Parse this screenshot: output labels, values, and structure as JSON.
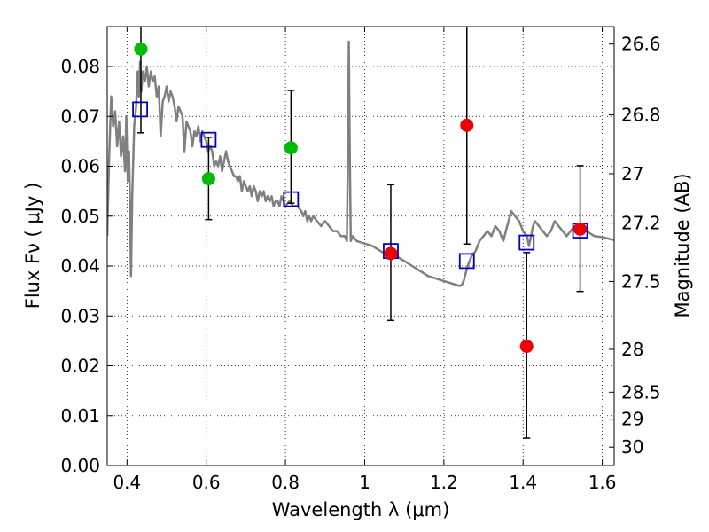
{
  "chart_data": {
    "type": "scatter",
    "xlabel": "Wavelength  λ (μm)",
    "ylabel": "Flux  Fν  ( μJy )",
    "y2label": "Magnitude (AB)",
    "xlim": [
      0.35,
      1.63
    ],
    "ylim": [
      0.0,
      0.088
    ],
    "xticks": [
      0.4,
      0.6,
      0.8,
      1.0,
      1.2,
      1.4,
      1.6
    ],
    "xticklabels": [
      "0.4",
      "0.6",
      "0.8",
      "1",
      "1.2",
      "1.4",
      "1.6"
    ],
    "yticks": [
      0.0,
      0.01,
      0.02,
      0.03,
      0.04,
      0.05,
      0.06,
      0.07,
      0.08
    ],
    "yticklabels": [
      "0.00",
      "0.01",
      "0.02",
      "0.03",
      "0.04",
      "0.05",
      "0.06",
      "0.07",
      "0.08"
    ],
    "y2ticks": [
      {
        "label": "26.6",
        "flux": 0.0845
      },
      {
        "label": "26.8",
        "flux": 0.0703
      },
      {
        "label": "27",
        "flux": 0.0585
      },
      {
        "label": "27.2",
        "flux": 0.0486
      },
      {
        "label": "27.5",
        "flux": 0.0369
      },
      {
        "label": "28",
        "flux": 0.0233
      },
      {
        "label": "28.5",
        "flux": 0.0147
      },
      {
        "label": "29",
        "flux": 0.0093
      },
      {
        "label": "30",
        "flux": 0.0037
      }
    ],
    "grid": true,
    "series": [
      {
        "kind": "model_sed",
        "color": "#808080",
        "points": [
          [
            0.35,
            0.046
          ],
          [
            0.355,
            0.062
          ],
          [
            0.36,
            0.074
          ],
          [
            0.365,
            0.068
          ],
          [
            0.37,
            0.071
          ],
          [
            0.375,
            0.064
          ],
          [
            0.38,
            0.069
          ],
          [
            0.385,
            0.062
          ],
          [
            0.39,
            0.066
          ],
          [
            0.395,
            0.059
          ],
          [
            0.398,
            0.07
          ],
          [
            0.402,
            0.057
          ],
          [
            0.405,
            0.063
          ],
          [
            0.408,
            0.05
          ],
          [
            0.41,
            0.038
          ],
          [
            0.413,
            0.054
          ],
          [
            0.418,
            0.068
          ],
          [
            0.423,
            0.072
          ],
          [
            0.427,
            0.079
          ],
          [
            0.43,
            0.074
          ],
          [
            0.433,
            0.081
          ],
          [
            0.436,
            0.075
          ],
          [
            0.44,
            0.079
          ],
          [
            0.445,
            0.077
          ],
          [
            0.45,
            0.08
          ],
          [
            0.455,
            0.076
          ],
          [
            0.46,
            0.079
          ],
          [
            0.465,
            0.077
          ],
          [
            0.47,
            0.078
          ],
          [
            0.475,
            0.074
          ],
          [
            0.48,
            0.076
          ],
          [
            0.485,
            0.066
          ],
          [
            0.49,
            0.073
          ],
          [
            0.495,
            0.074
          ],
          [
            0.5,
            0.076
          ],
          [
            0.505,
            0.073
          ],
          [
            0.51,
            0.075
          ],
          [
            0.515,
            0.074
          ],
          [
            0.52,
            0.072
          ],
          [
            0.525,
            0.069
          ],
          [
            0.53,
            0.072
          ],
          [
            0.535,
            0.071
          ],
          [
            0.54,
            0.07
          ],
          [
            0.545,
            0.063
          ],
          [
            0.55,
            0.069
          ],
          [
            0.555,
            0.068
          ],
          [
            0.56,
            0.067
          ],
          [
            0.565,
            0.064
          ],
          [
            0.57,
            0.067
          ],
          [
            0.575,
            0.066
          ],
          [
            0.58,
            0.068
          ],
          [
            0.585,
            0.065
          ],
          [
            0.59,
            0.067
          ],
          [
            0.595,
            0.066
          ],
          [
            0.6,
            0.065
          ],
          [
            0.605,
            0.063
          ],
          [
            0.61,
            0.064
          ],
          [
            0.615,
            0.063
          ],
          [
            0.62,
            0.06
          ],
          [
            0.625,
            0.061
          ],
          [
            0.63,
            0.06
          ],
          [
            0.635,
            0.062
          ],
          [
            0.64,
            0.059
          ],
          [
            0.645,
            0.061
          ],
          [
            0.65,
            0.063
          ],
          [
            0.655,
            0.061
          ],
          [
            0.66,
            0.06
          ],
          [
            0.665,
            0.059
          ],
          [
            0.67,
            0.058
          ],
          [
            0.675,
            0.058
          ],
          [
            0.68,
            0.057
          ],
          [
            0.685,
            0.058
          ],
          [
            0.69,
            0.055
          ],
          [
            0.695,
            0.057
          ],
          [
            0.7,
            0.056
          ],
          [
            0.705,
            0.055
          ],
          [
            0.71,
            0.056
          ],
          [
            0.715,
            0.054
          ],
          [
            0.72,
            0.056
          ],
          [
            0.725,
            0.055
          ],
          [
            0.73,
            0.053
          ],
          [
            0.735,
            0.055
          ],
          [
            0.74,
            0.054
          ],
          [
            0.745,
            0.055
          ],
          [
            0.75,
            0.053
          ],
          [
            0.755,
            0.054
          ],
          [
            0.76,
            0.053
          ],
          [
            0.765,
            0.054
          ],
          [
            0.77,
            0.052
          ],
          [
            0.775,
            0.053
          ],
          [
            0.78,
            0.053
          ],
          [
            0.785,
            0.052
          ],
          [
            0.79,
            0.054
          ],
          [
            0.795,
            0.053
          ],
          [
            0.8,
            0.052
          ],
          [
            0.81,
            0.053
          ],
          [
            0.82,
            0.052
          ],
          [
            0.83,
            0.052
          ],
          [
            0.84,
            0.051
          ],
          [
            0.845,
            0.05
          ],
          [
            0.85,
            0.051
          ],
          [
            0.855,
            0.049
          ],
          [
            0.86,
            0.05
          ],
          [
            0.865,
            0.049
          ],
          [
            0.87,
            0.05
          ],
          [
            0.88,
            0.049
          ],
          [
            0.89,
            0.048
          ],
          [
            0.9,
            0.049
          ],
          [
            0.91,
            0.048
          ],
          [
            0.92,
            0.047
          ],
          [
            0.93,
            0.047
          ],
          [
            0.94,
            0.046
          ],
          [
            0.95,
            0.046
          ],
          [
            0.955,
            0.045
          ],
          [
            0.958,
            0.065
          ],
          [
            0.96,
            0.085
          ],
          [
            0.962,
            0.066
          ],
          [
            0.965,
            0.045
          ],
          [
            0.97,
            0.046
          ],
          [
            0.98,
            0.045
          ],
          [
            1.0,
            0.0445
          ],
          [
            1.02,
            0.044
          ],
          [
            1.04,
            0.043
          ],
          [
            1.06,
            0.042
          ],
          [
            1.08,
            0.042
          ],
          [
            1.1,
            0.041
          ],
          [
            1.12,
            0.04
          ],
          [
            1.14,
            0.039
          ],
          [
            1.16,
            0.038
          ],
          [
            1.18,
            0.0375
          ],
          [
            1.2,
            0.037
          ],
          [
            1.22,
            0.0365
          ],
          [
            1.24,
            0.036
          ],
          [
            1.245,
            0.0362
          ],
          [
            1.25,
            0.037
          ],
          [
            1.255,
            0.0385
          ],
          [
            1.26,
            0.04
          ],
          [
            1.27,
            0.042
          ],
          [
            1.28,
            0.043
          ],
          [
            1.29,
            0.045
          ],
          [
            1.3,
            0.046
          ],
          [
            1.31,
            0.047
          ],
          [
            1.32,
            0.046
          ],
          [
            1.33,
            0.048
          ],
          [
            1.34,
            0.047
          ],
          [
            1.35,
            0.045
          ],
          [
            1.36,
            0.048
          ],
          [
            1.37,
            0.051
          ],
          [
            1.38,
            0.05
          ],
          [
            1.39,
            0.049
          ],
          [
            1.4,
            0.047
          ],
          [
            1.41,
            0.046
          ],
          [
            1.415,
            0.044
          ],
          [
            1.42,
            0.046
          ],
          [
            1.425,
            0.048
          ],
          [
            1.43,
            0.049
          ],
          [
            1.44,
            0.048
          ],
          [
            1.45,
            0.047
          ],
          [
            1.46,
            0.046
          ],
          [
            1.47,
            0.047
          ],
          [
            1.48,
            0.049
          ],
          [
            1.49,
            0.048
          ],
          [
            1.5,
            0.047
          ],
          [
            1.51,
            0.046
          ],
          [
            1.52,
            0.047
          ],
          [
            1.53,
            0.048
          ],
          [
            1.54,
            0.047
          ],
          [
            1.56,
            0.047
          ],
          [
            1.58,
            0.046
          ],
          [
            1.6,
            0.0458
          ],
          [
            1.63,
            0.0452
          ]
        ]
      },
      {
        "kind": "model_photometry",
        "marker": "open-square",
        "color": "#0000cc",
        "points": [
          {
            "x": 0.433,
            "y": 0.0714
          },
          {
            "x": 0.606,
            "y": 0.0653
          },
          {
            "x": 0.814,
            "y": 0.0534
          },
          {
            "x": 1.066,
            "y": 0.043
          },
          {
            "x": 1.258,
            "y": 0.041
          },
          {
            "x": 1.409,
            "y": 0.0447
          },
          {
            "x": 1.544,
            "y": 0.0471
          }
        ]
      },
      {
        "kind": "observed_detection",
        "marker": "filled-circle",
        "color": "#00bb00",
        "points": [
          {
            "x": 0.435,
            "y": 0.0835,
            "lo": 0.0667,
            "hi": 0.089
          },
          {
            "x": 0.606,
            "y": 0.0575,
            "lo": 0.0493,
            "hi": 0.0658
          },
          {
            "x": 0.814,
            "y": 0.0637,
            "lo": 0.0526,
            "hi": 0.0752
          }
        ]
      },
      {
        "kind": "observed_lowsn",
        "marker": "filled-circle",
        "color": "#ee0000",
        "points": [
          {
            "x": 1.066,
            "y": 0.0425,
            "lo": 0.0291,
            "hi": 0.0563
          },
          {
            "x": 1.258,
            "y": 0.0682,
            "lo": 0.0444,
            "hi": 0.089
          },
          {
            "x": 1.409,
            "y": 0.0239,
            "lo": 0.0055,
            "hi": 0.0427
          },
          {
            "x": 1.544,
            "y": 0.0474,
            "lo": 0.0349,
            "hi": 0.0601
          }
        ]
      }
    ]
  }
}
